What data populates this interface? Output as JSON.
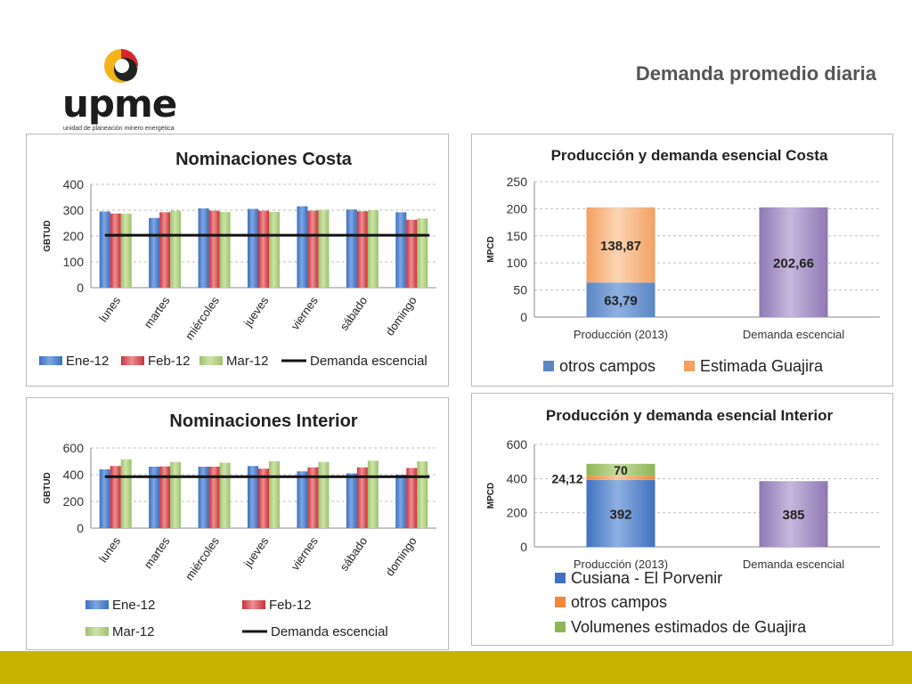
{
  "header": {
    "title": "Demanda promedio diaria",
    "logo_text": "upme",
    "logo_subtitle": "unidad de planeación minero energética"
  },
  "colors": {
    "ene": "#3a6fbf",
    "feb": "#c8323a",
    "mar": "#9cc16a",
    "line": "#111111",
    "otros": "#5b86c5",
    "guajira_est": "#f3a061",
    "demanda": "#8e78b3",
    "cusiana": "#3f71c1",
    "otros_orange": "#f08a3a",
    "vol_guajira": "#8db656",
    "band": "#c8b400"
  },
  "chart_data": [
    {
      "id": "costa",
      "type": "bar",
      "title": "Nominaciones Costa",
      "ylabel": "GBTUD",
      "ylim": [
        0,
        400
      ],
      "yticks": [
        "0",
        "100",
        "200",
        "300",
        "400"
      ],
      "categories": [
        "lunes",
        "martes",
        "miércoles",
        "jueves",
        "viernes",
        "sábado",
        "domingo"
      ],
      "series": [
        {
          "name": "Ene-12",
          "values": [
            295,
            270,
            307,
            305,
            315,
            303,
            292
          ]
        },
        {
          "name": "Feb-12",
          "values": [
            287,
            292,
            298,
            298,
            298,
            296,
            263
          ]
        },
        {
          "name": "Mar-12",
          "values": [
            286,
            298,
            293,
            293,
            302,
            300,
            268
          ]
        }
      ],
      "line": {
        "name": "Demanda escencial",
        "value": 203
      },
      "legend": "bottom"
    },
    {
      "id": "interior",
      "type": "bar",
      "title": "Nominaciones Interior",
      "ylabel": "GBTUD",
      "ylim": [
        0,
        600
      ],
      "yticks": [
        "0",
        "200",
        "400",
        "600"
      ],
      "categories": [
        "lunes",
        "martes",
        "miércoles",
        "jueves",
        "viernes",
        "sábado",
        "domingo"
      ],
      "series": [
        {
          "name": "Ene-12",
          "values": [
            440,
            460,
            460,
            465,
            425,
            410,
            400
          ]
        },
        {
          "name": "Feb-12",
          "values": [
            465,
            462,
            460,
            445,
            455,
            455,
            450
          ]
        },
        {
          "name": "Mar-12",
          "values": [
            515,
            495,
            490,
            500,
            495,
            505,
            500
          ]
        }
      ],
      "line": {
        "name": "Demanda escencial",
        "value": 385
      },
      "legend": "bottom"
    },
    {
      "id": "prod-costa",
      "type": "bar",
      "title": "Producción  y demanda esencial Costa",
      "ylabel": "MPCD",
      "ylim": [
        0,
        250
      ],
      "yticks": [
        "0",
        "50",
        "100",
        "150",
        "200",
        "250"
      ],
      "categories": [
        "Producción (2013)",
        "Demanda escencial"
      ],
      "stacks": [
        {
          "segments": [
            {
              "series": "otros campos",
              "value": 63.79,
              "label": "63,79"
            },
            {
              "series": "Estimada Guajira",
              "value": 138.87,
              "label": "138,87"
            }
          ]
        },
        {
          "segments": [
            {
              "series": "Demanda",
              "value": 202.66,
              "label": "202,66"
            }
          ]
        }
      ],
      "legend_items": [
        "otros campos",
        "Estimada Guajira"
      ],
      "legend": "bottom"
    },
    {
      "id": "prod-interior",
      "type": "bar",
      "title": "Producción  y demanda esencial Interior",
      "ylabel": "MPCD",
      "ylim": [
        0,
        600
      ],
      "yticks": [
        "0",
        "200",
        "400",
        "600"
      ],
      "categories": [
        "Producción (2013)",
        "Demanda escencial"
      ],
      "stacks": [
        {
          "segments": [
            {
              "series": "Cusiana - El Porvenir",
              "value": 392,
              "label": "392"
            },
            {
              "series": "otros campos",
              "value": 24.12,
              "label": "24,12"
            },
            {
              "series": "Volumenes estimados de Guajira",
              "value": 70,
              "label": "70"
            }
          ]
        },
        {
          "segments": [
            {
              "series": "Demanda",
              "value": 385,
              "label": "385"
            }
          ]
        }
      ],
      "legend_items": [
        "Cusiana - El Porvenir",
        "otros campos",
        "Volumenes estimados de Guajira"
      ],
      "legend": "bottom"
    }
  ]
}
